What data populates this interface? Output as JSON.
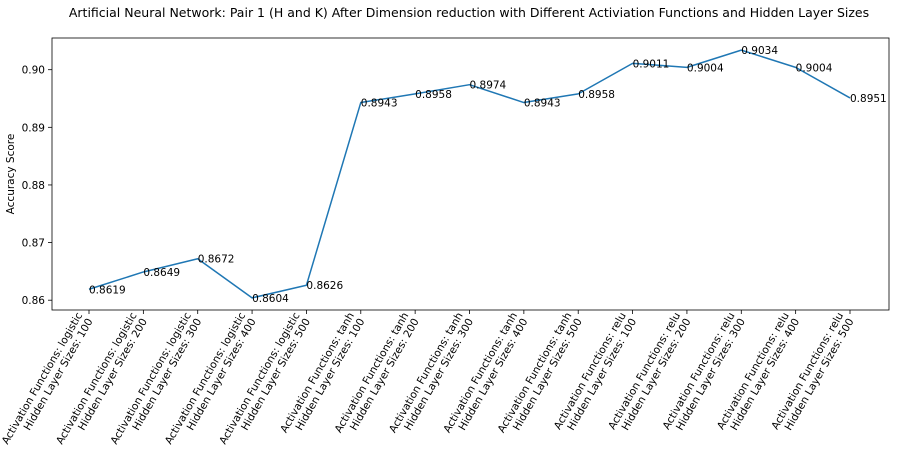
{
  "chart_data": {
    "type": "line",
    "title": "Artificial Neural Network: Pair 1 (H and K) After Dimension reduction with Different Activiation Functions and Hidden Layer Sizes",
    "xlabel": "",
    "ylabel": "Accuracy Score",
    "categories": [
      [
        "Activation Functions: logistic",
        "Hidden Layer Sizes: 100"
      ],
      [
        "Activation Functions: logistic",
        "Hidden Layer Sizes: 200"
      ],
      [
        "Activation Functions: logistic",
        "Hidden Layer Sizes: 300"
      ],
      [
        "Activation Functions: logistic",
        "Hidden Layer Sizes: 400"
      ],
      [
        "Activation Functions: logistic",
        "Hidden Layer Sizes: 500"
      ],
      [
        "Activation Functions: tanh",
        "Hidden Layer Sizes: 100"
      ],
      [
        "Activation Functions: tanh",
        "Hidden Layer Sizes: 200"
      ],
      [
        "Activation Functions: tanh",
        "Hidden Layer Sizes: 300"
      ],
      [
        "Activation Functions: tanh",
        "Hidden Layer Sizes: 400"
      ],
      [
        "Activation Functions: tanh",
        "Hidden Layer Sizes: 500"
      ],
      [
        "Activation Functions: relu",
        "Hidden Layer Sizes: 100"
      ],
      [
        "Activation Functions: relu",
        "Hidden Layer Sizes: 200"
      ],
      [
        "Activation Functions: relu",
        "Hidden Layer Sizes: 300"
      ],
      [
        "Activation Functions: relu",
        "Hidden Layer Sizes: 400"
      ],
      [
        "Activation Functions: relu",
        "Hidden Layer Sizes: 500"
      ]
    ],
    "values": [
      0.8619,
      0.8649,
      0.8672,
      0.8604,
      0.8626,
      0.8943,
      0.8958,
      0.8974,
      0.8943,
      0.8958,
      0.9011,
      0.9004,
      0.9034,
      0.9004,
      0.8951
    ],
    "data_labels": [
      "0.8619",
      "0.8649",
      "0.8672",
      "0.8604",
      "0.8626",
      "0.8943",
      "0.8958",
      "0.8974",
      "0.8943",
      "0.8958",
      "0.9011",
      "0.9004",
      "0.9034",
      "0.9004",
      "0.8951"
    ],
    "yticks": [
      0.86,
      0.87,
      0.88,
      0.89,
      0.9
    ],
    "ytick_labels": [
      "0.86",
      "0.87",
      "0.88",
      "0.89",
      "0.90"
    ],
    "ylim": [
      0.8583,
      0.9055
    ],
    "grid": false,
    "legend": "none",
    "line_color": "#1f77b4"
  }
}
